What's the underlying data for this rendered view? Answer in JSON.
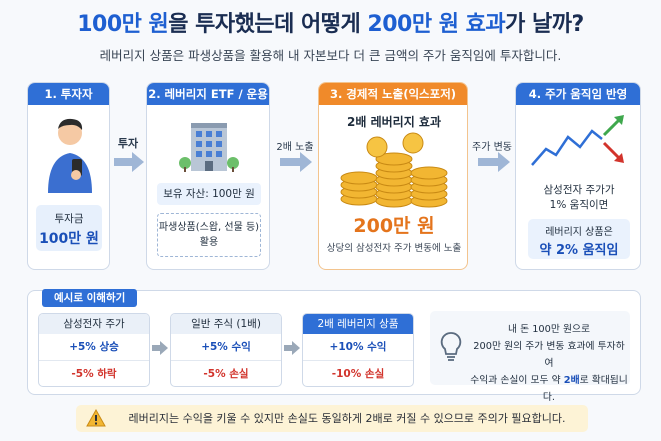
{
  "header": {
    "title_part1": "100만 원",
    "title_part2": "을 투자했는데 어떻게 ",
    "title_part3": "200만 원 효과",
    "title_part4": "가 날까?",
    "subtitle": "레버리지 상품은 파생상품을 활용해 내 자본보다 더 큰 금액의 주가 움직임에 투자합니다."
  },
  "steps": [
    {
      "label": "1. 투자자",
      "box_line1": "투자금",
      "box_line2": "100만 원"
    },
    {
      "label": "2. 레버리지 ETF / 운용사",
      "asset_text": "보유 자산: 100만 원",
      "deriv_line1": "파생상품(스왑, 선물 등)",
      "deriv_line2": "활용"
    },
    {
      "label": "3. 경제적 노출(익스포저)",
      "line1": "2배 레버리지 효과",
      "big": "200만 원",
      "small": "상당의 삼성전자 주가 변동에 노출"
    },
    {
      "label": "4. 주가 움직임 반영",
      "text_line1": "삼성전자 주가가",
      "text_line2": "1% 움직이면",
      "box_line1": "레버리지 상품은",
      "box_line2": "약 2% 움직임"
    }
  ],
  "arrows": {
    "a1": "투자",
    "a2": "2배 노출",
    "a3": "주가 변동"
  },
  "example": {
    "tag": "예시로 이해하기",
    "columns": [
      {
        "head": "삼성전자 주가",
        "up": "+5% 상승",
        "down": "-5% 하락"
      },
      {
        "head": "일반 주식 (1배)",
        "up": "+5% 수익",
        "down": "-5% 손실"
      },
      {
        "head": "2배 레버리지 상품",
        "up": "+10% 수익",
        "down": "-10% 손실"
      }
    ],
    "summary_line1": "내 돈 100만 원으로",
    "summary_line2": "200만 원의 주가 변동 효과에 투자하여",
    "summary_line3a": "수익과 손실이 모두 약 ",
    "summary_line3b": "2배",
    "summary_line3c": "로 확대됩니다."
  },
  "warning": "레버리지는 수익을 키울 수 있지만 손실도 동일하게 2배로 커질 수 있으므로 주의가 필요합니다.",
  "colors": {
    "primary": "#2f6fd6",
    "accent": "#f08a2a",
    "up": "#1a4fb8",
    "down": "#d2342c"
  }
}
